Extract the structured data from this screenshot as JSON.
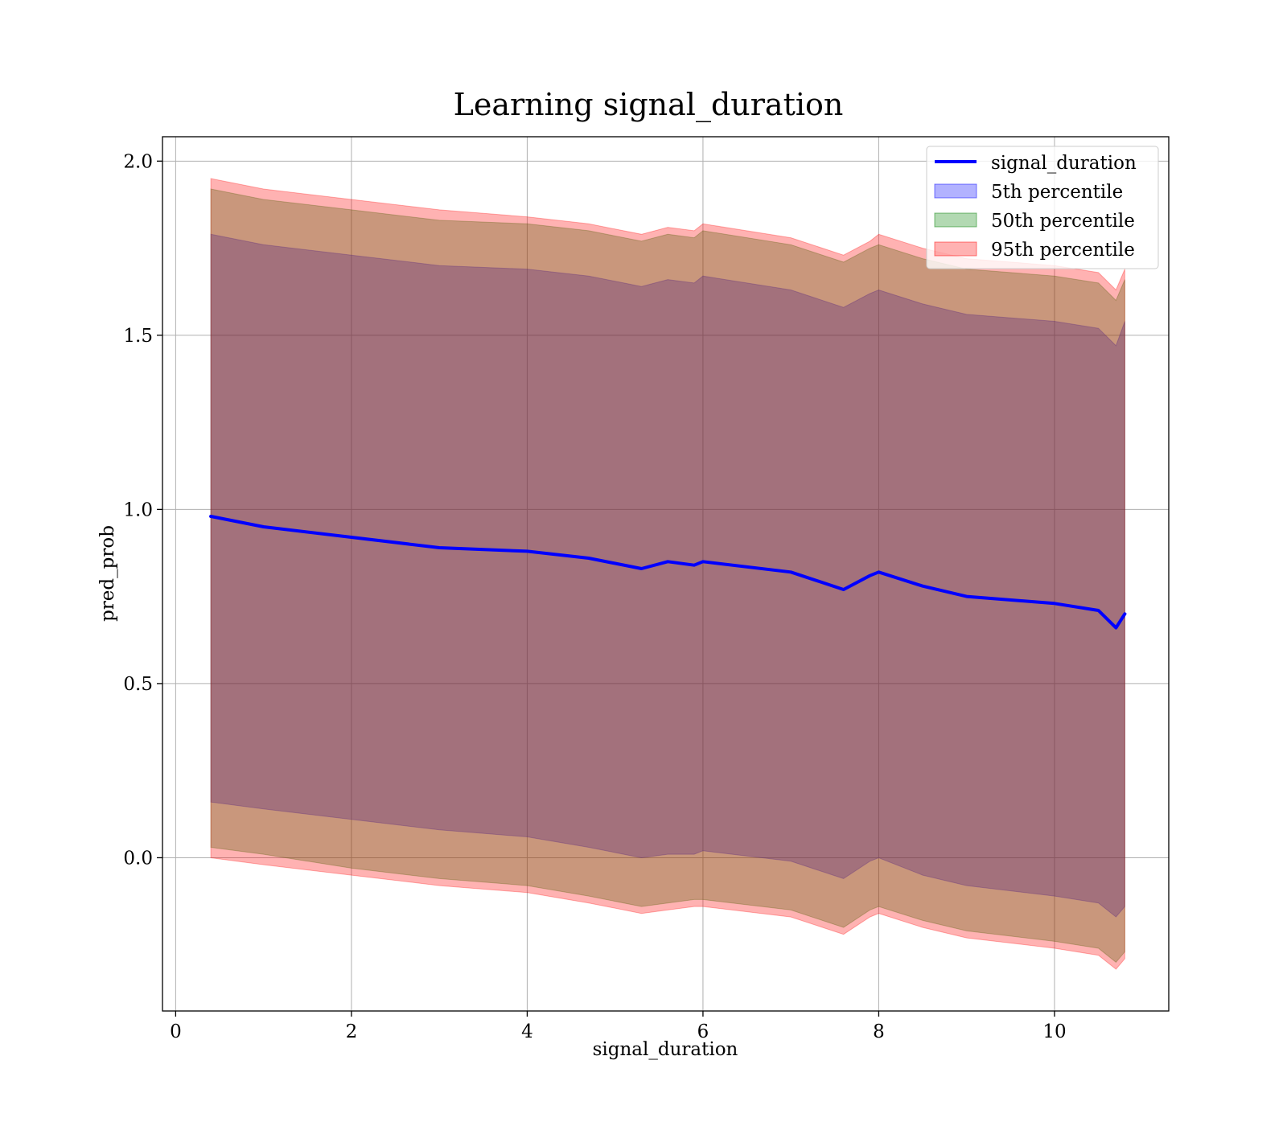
{
  "chart_data": {
    "type": "area",
    "title": "Learning signal_duration",
    "xlabel": "signal_duration",
    "ylabel": "pred_prob",
    "xlim": [
      -0.15,
      11.3
    ],
    "ylim": [
      -0.44,
      2.07
    ],
    "x_ticks": [
      0,
      2,
      4,
      6,
      8,
      10
    ],
    "x_tick_labels": [
      "0",
      "2",
      "4",
      "6",
      "8",
      "10"
    ],
    "y_ticks": [
      0.0,
      0.5,
      1.0,
      1.5,
      2.0
    ],
    "y_tick_labels": [
      "0.0",
      "0.5",
      "1.0",
      "1.5",
      "2.0"
    ],
    "grid": true,
    "legend_position": "top-right",
    "x": [
      0.4,
      1.0,
      2.0,
      3.0,
      4.0,
      4.7,
      5.3,
      5.6,
      5.9,
      6.0,
      7.0,
      7.6,
      7.9,
      8.0,
      8.5,
      9.0,
      10.0,
      10.5,
      10.7,
      10.8
    ],
    "line": {
      "name": "signal_duration",
      "color": "#0000ff",
      "values": [
        0.98,
        0.95,
        0.92,
        0.89,
        0.88,
        0.86,
        0.83,
        0.85,
        0.84,
        0.85,
        0.82,
        0.77,
        0.81,
        0.82,
        0.78,
        0.75,
        0.73,
        0.71,
        0.66,
        0.7
      ]
    },
    "bands": [
      {
        "name": "5th percentile",
        "color": "#0000ff",
        "alpha": 0.3,
        "lower": [
          0.16,
          0.14,
          0.11,
          0.08,
          0.06,
          0.03,
          0.0,
          0.01,
          0.01,
          0.02,
          -0.01,
          -0.06,
          -0.01,
          0.0,
          -0.05,
          -0.08,
          -0.11,
          -0.13,
          -0.17,
          -0.14
        ],
        "upper": [
          1.79,
          1.76,
          1.73,
          1.7,
          1.69,
          1.67,
          1.64,
          1.66,
          1.65,
          1.67,
          1.63,
          1.58,
          1.62,
          1.63,
          1.59,
          1.56,
          1.54,
          1.52,
          1.47,
          1.54
        ]
      },
      {
        "name": "50th percentile",
        "color": "#008000",
        "alpha": 0.3,
        "lower": [
          0.03,
          0.01,
          -0.03,
          -0.06,
          -0.08,
          -0.11,
          -0.14,
          -0.13,
          -0.12,
          -0.12,
          -0.15,
          -0.2,
          -0.15,
          -0.14,
          -0.18,
          -0.21,
          -0.24,
          -0.26,
          -0.3,
          -0.27
        ],
        "upper": [
          1.92,
          1.89,
          1.86,
          1.83,
          1.82,
          1.8,
          1.77,
          1.79,
          1.78,
          1.8,
          1.76,
          1.71,
          1.75,
          1.76,
          1.72,
          1.69,
          1.67,
          1.65,
          1.6,
          1.66
        ]
      },
      {
        "name": "95th percentile",
        "color": "#ff0000",
        "alpha": 0.3,
        "lower": [
          0.0,
          -0.02,
          -0.05,
          -0.08,
          -0.1,
          -0.13,
          -0.16,
          -0.15,
          -0.14,
          -0.14,
          -0.17,
          -0.22,
          -0.17,
          -0.16,
          -0.2,
          -0.23,
          -0.26,
          -0.28,
          -0.32,
          -0.29
        ],
        "upper": [
          1.95,
          1.92,
          1.89,
          1.86,
          1.84,
          1.82,
          1.79,
          1.81,
          1.8,
          1.82,
          1.78,
          1.73,
          1.77,
          1.79,
          1.75,
          1.72,
          1.7,
          1.68,
          1.63,
          1.69
        ]
      }
    ]
  }
}
